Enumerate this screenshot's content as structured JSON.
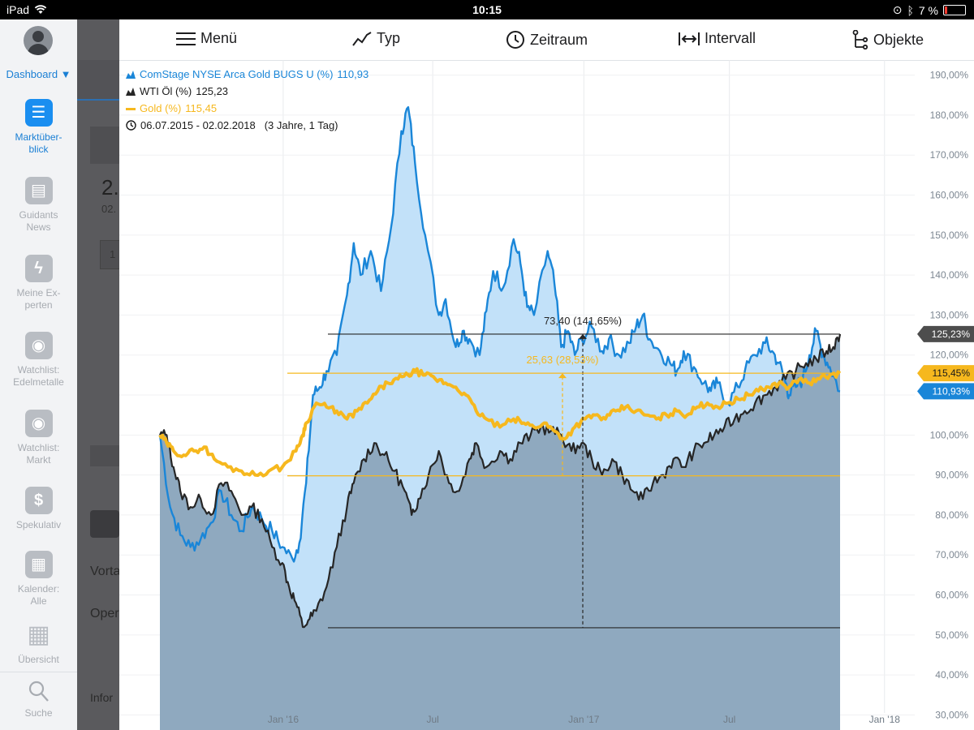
{
  "status": {
    "device": "iPad",
    "time": "10:15",
    "battery": "7 %"
  },
  "sidebar": {
    "dashboard_label": "Dashboard ▼",
    "items": [
      {
        "label": "Marktüber-\nblick",
        "icon": "list-icon"
      },
      {
        "label": "Guidants\nNews",
        "icon": "news-icon"
      },
      {
        "label": "Meine Ex-\nperten",
        "icon": "lightning-icon"
      },
      {
        "label": "Watchlist:\nEdelmetalle",
        "icon": "eye-icon"
      },
      {
        "label": "Watchlist:\nMarkt",
        "icon": "eye-icon"
      },
      {
        "label": "Spekulativ",
        "icon": "dollar-icon"
      },
      {
        "label": "Kalender:\nAlle",
        "icon": "calendar-icon"
      },
      {
        "label": "Übersicht",
        "icon": "grid-icon"
      }
    ],
    "search_label": "Suche"
  },
  "background": {
    "texts": [
      "2.",
      "02.",
      "1",
      "Vorta",
      "Oper",
      "Infor"
    ]
  },
  "toolbar": {
    "menu": "Menü",
    "type": "Typ",
    "period": "Zeitraum",
    "interval": "Intervall",
    "objects": "Objekte"
  },
  "legend": {
    "series1": "ComStage NYSE Arca Gold BUGS U (%)",
    "series1_value": "110,93",
    "series2": "WTI Öl (%)",
    "series2_value": "125,23",
    "series3": "Gold (%)",
    "series3_value": "115,45",
    "range": "06.07.2015 - 02.02.2018",
    "range_detail": "(3 Jahre, 1 Tag)"
  },
  "colors": {
    "blue": "#1a86d8",
    "blue_fill": "#c2e1f9",
    "black": "#262626",
    "dark_fill": "#8fa9bf",
    "gold": "#f6b81e",
    "gray_fill": "#c5c7ca"
  },
  "chart_data": {
    "type": "area",
    "x_ticks": [
      "Jan '16",
      "Jul",
      "Jan '17",
      "Jul",
      "Jan '18"
    ],
    "x_tick_positions": [
      0.206,
      0.394,
      0.584,
      0.767,
      0.962
    ],
    "y_ticks": [
      "30,00%",
      "40,00%",
      "50,00%",
      "60,00%",
      "70,00%",
      "80,00%",
      "90,00%",
      "100,00%",
      "110,00%",
      "120,00%",
      "130,00%",
      "140,00%",
      "150,00%",
      "160,00%",
      "170,00%",
      "180,00%",
      "190,00%"
    ],
    "ylim": [
      24,
      197
    ],
    "series": [
      {
        "name": "ComStage NYSE Arca Gold BUGS U (%)",
        "points": [
          [
            0,
            100
          ],
          [
            0.015,
            82
          ],
          [
            0.03,
            75
          ],
          [
            0.045,
            72
          ],
          [
            0.06,
            74
          ],
          [
            0.075,
            78
          ],
          [
            0.09,
            86
          ],
          [
            0.105,
            80
          ],
          [
            0.12,
            76
          ],
          [
            0.135,
            82
          ],
          [
            0.15,
            79
          ],
          [
            0.165,
            76
          ],
          [
            0.18,
            72
          ],
          [
            0.195,
            69
          ],
          [
            0.205,
            73
          ],
          [
            0.215,
            88
          ],
          [
            0.225,
            110
          ],
          [
            0.235,
            112
          ],
          [
            0.245,
            116
          ],
          [
            0.26,
            120
          ],
          [
            0.275,
            135
          ],
          [
            0.285,
            148
          ],
          [
            0.295,
            140
          ],
          [
            0.31,
            146
          ],
          [
            0.325,
            136
          ],
          [
            0.34,
            152
          ],
          [
            0.355,
            176
          ],
          [
            0.365,
            182
          ],
          [
            0.375,
            168
          ],
          [
            0.39,
            150
          ],
          [
            0.41,
            130
          ],
          [
            0.42,
            134
          ],
          [
            0.435,
            122
          ],
          [
            0.445,
            126
          ],
          [
            0.455,
            124
          ],
          [
            0.47,
            120
          ],
          [
            0.48,
            131
          ],
          [
            0.49,
            141
          ],
          [
            0.505,
            137
          ],
          [
            0.52,
            149
          ],
          [
            0.53,
            143
          ],
          [
            0.54,
            132
          ],
          [
            0.55,
            130
          ],
          [
            0.57,
            146
          ],
          [
            0.58,
            138
          ],
          [
            0.59,
            122
          ],
          [
            0.6,
            126
          ],
          [
            0.61,
            120
          ],
          [
            0.62,
            124
          ],
          [
            0.635,
            127
          ],
          [
            0.65,
            121
          ],
          [
            0.66,
            124
          ],
          [
            0.675,
            120
          ],
          [
            0.69,
            123
          ],
          [
            0.7,
            127
          ],
          [
            0.71,
            130
          ],
          [
            0.72,
            124
          ],
          [
            0.735,
            121
          ],
          [
            0.75,
            118
          ],
          [
            0.76,
            116
          ],
          [
            0.77,
            121
          ],
          [
            0.785,
            117
          ],
          [
            0.8,
            113
          ],
          [
            0.81,
            111
          ],
          [
            0.82,
            113
          ],
          [
            0.835,
            108
          ],
          [
            0.85,
            112
          ],
          [
            0.86,
            116
          ],
          [
            0.875,
            120
          ],
          [
            0.89,
            123
          ],
          [
            0.9,
            121
          ],
          [
            0.91,
            118
          ],
          [
            0.92,
            113
          ],
          [
            0.925,
            110
          ],
          [
            0.935,
            112
          ],
          [
            0.945,
            114
          ],
          [
            0.955,
            120
          ],
          [
            0.965,
            126
          ],
          [
            0.975,
            120
          ],
          [
            0.985,
            117
          ],
          [
            1,
            110.93
          ]
        ]
      },
      {
        "name": "WTI Öl (%)",
        "points": [
          [
            0,
            100
          ],
          [
            0.01,
            100
          ],
          [
            0.02,
            92
          ],
          [
            0.03,
            86
          ],
          [
            0.045,
            82
          ],
          [
            0.06,
            84
          ],
          [
            0.075,
            80
          ],
          [
            0.09,
            88
          ],
          [
            0.105,
            86
          ],
          [
            0.12,
            80
          ],
          [
            0.135,
            82
          ],
          [
            0.15,
            79
          ],
          [
            0.165,
            72
          ],
          [
            0.18,
            68
          ],
          [
            0.19,
            62
          ],
          [
            0.2,
            58
          ],
          [
            0.21,
            52
          ],
          [
            0.22,
            54
          ],
          [
            0.23,
            56
          ],
          [
            0.245,
            62
          ],
          [
            0.26,
            72
          ],
          [
            0.275,
            82
          ],
          [
            0.285,
            88
          ],
          [
            0.3,
            94
          ],
          [
            0.315,
            98
          ],
          [
            0.33,
            95
          ],
          [
            0.345,
            91
          ],
          [
            0.36,
            86
          ],
          [
            0.37,
            80
          ],
          [
            0.38,
            84
          ],
          [
            0.395,
            90
          ],
          [
            0.41,
            96
          ],
          [
            0.425,
            88
          ],
          [
            0.44,
            86
          ],
          [
            0.455,
            94
          ],
          [
            0.465,
            98
          ],
          [
            0.48,
            92
          ],
          [
            0.5,
            96
          ],
          [
            0.515,
            94
          ],
          [
            0.53,
            98
          ],
          [
            0.545,
            100
          ],
          [
            0.56,
            102
          ],
          [
            0.575,
            101
          ],
          [
            0.59,
            100
          ],
          [
            0.605,
            96
          ],
          [
            0.62,
            98
          ],
          [
            0.635,
            94
          ],
          [
            0.65,
            90
          ],
          [
            0.665,
            94
          ],
          [
            0.68,
            90
          ],
          [
            0.695,
            86
          ],
          [
            0.71,
            84
          ],
          [
            0.725,
            88
          ],
          [
            0.74,
            90
          ],
          [
            0.755,
            94
          ],
          [
            0.77,
            92
          ],
          [
            0.785,
            96
          ],
          [
            0.8,
            98
          ],
          [
            0.815,
            100
          ],
          [
            0.83,
            102
          ],
          [
            0.845,
            104
          ],
          [
            0.86,
            106
          ],
          [
            0.875,
            108
          ],
          [
            0.89,
            110
          ],
          [
            0.905,
            112
          ],
          [
            0.92,
            114
          ],
          [
            0.935,
            116
          ],
          [
            0.95,
            118
          ],
          [
            0.965,
            119
          ],
          [
            0.98,
            121
          ],
          [
            0.99,
            122
          ],
          [
            1,
            125.23
          ]
        ]
      },
      {
        "name": "Gold (%)",
        "points": [
          [
            0,
            100
          ],
          [
            0.01,
            98
          ],
          [
            0.02,
            96
          ],
          [
            0.035,
            95
          ],
          [
            0.05,
            96
          ],
          [
            0.065,
            97
          ],
          [
            0.08,
            94
          ],
          [
            0.1,
            92
          ],
          [
            0.12,
            91
          ],
          [
            0.14,
            90
          ],
          [
            0.16,
            91
          ],
          [
            0.18,
            92
          ],
          [
            0.2,
            96
          ],
          [
            0.21,
            100
          ],
          [
            0.215,
            103
          ],
          [
            0.23,
            108
          ],
          [
            0.245,
            107
          ],
          [
            0.26,
            106
          ],
          [
            0.275,
            104
          ],
          [
            0.29,
            106
          ],
          [
            0.305,
            108
          ],
          [
            0.32,
            111
          ],
          [
            0.335,
            113
          ],
          [
            0.35,
            114
          ],
          [
            0.365,
            115
          ],
          [
            0.375,
            116
          ],
          [
            0.39,
            115
          ],
          [
            0.405,
            114
          ],
          [
            0.42,
            113
          ],
          [
            0.435,
            112
          ],
          [
            0.45,
            110
          ],
          [
            0.465,
            106
          ],
          [
            0.48,
            104
          ],
          [
            0.5,
            102
          ],
          [
            0.52,
            104
          ],
          [
            0.535,
            103
          ],
          [
            0.55,
            102
          ],
          [
            0.565,
            103
          ],
          [
            0.58,
            101
          ],
          [
            0.595,
            99
          ],
          [
            0.61,
            102
          ],
          [
            0.625,
            104
          ],
          [
            0.64,
            105
          ],
          [
            0.655,
            104
          ],
          [
            0.67,
            106
          ],
          [
            0.685,
            107
          ],
          [
            0.7,
            106
          ],
          [
            0.715,
            105
          ],
          [
            0.73,
            104
          ],
          [
            0.745,
            105
          ],
          [
            0.76,
            106
          ],
          [
            0.775,
            105
          ],
          [
            0.79,
            107
          ],
          [
            0.805,
            108
          ],
          [
            0.82,
            107
          ],
          [
            0.835,
            108
          ],
          [
            0.85,
            109
          ],
          [
            0.865,
            110
          ],
          [
            0.88,
            111
          ],
          [
            0.895,
            112
          ],
          [
            0.91,
            113
          ],
          [
            0.925,
            112
          ],
          [
            0.94,
            114
          ],
          [
            0.955,
            113
          ],
          [
            0.97,
            114
          ],
          [
            0.985,
            115
          ],
          [
            1,
            115.45
          ]
        ]
      }
    ],
    "value_labels": [
      {
        "text": "125,23%",
        "value": 125.23,
        "bg": "#4d4d4d",
        "fg": "#ffffff"
      },
      {
        "text": "115,45%",
        "value": 115.45,
        "bg": "#f6b81e",
        "fg": "#1a1a1a"
      },
      {
        "text": "110,93%",
        "value": 110.93,
        "bg": "#1a86d8",
        "fg": "#ffffff"
      }
    ],
    "annotations": [
      {
        "text": "73,40 (141,65%)",
        "low": 51.8,
        "high": 125.23,
        "color": "#262626"
      },
      {
        "text": "25,63 (28,53%)",
        "low": 89.8,
        "high": 115.45,
        "color": "#f6b81e"
      }
    ]
  }
}
